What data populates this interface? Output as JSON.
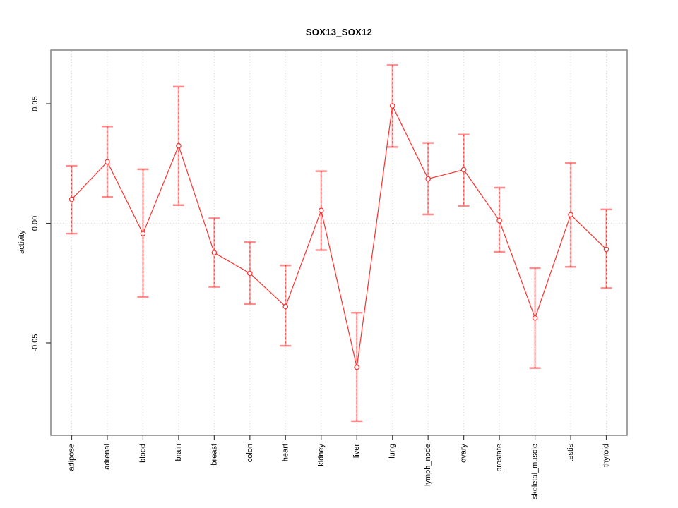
{
  "chart_data": {
    "type": "line",
    "title": "SOX13_SOX12",
    "xlabel": "",
    "ylabel": "activity",
    "categories": [
      "adipose",
      "adrenal",
      "blood",
      "brain",
      "breast",
      "colon",
      "heart",
      "kidney",
      "liver",
      "lung",
      "lymph_node",
      "ovary",
      "prostate",
      "skeletal_muscle",
      "testis",
      "thyroid"
    ],
    "series": [
      {
        "name": "SOX13_SOX12 activity",
        "values": [
          0.01,
          0.0257,
          -0.0043,
          0.0324,
          -0.0123,
          -0.0209,
          -0.0348,
          0.0054,
          -0.0602,
          0.0491,
          0.0186,
          0.0224,
          0.0011,
          -0.0396,
          0.0036,
          -0.0109
        ],
        "upper": [
          0.024,
          0.0405,
          0.0226,
          0.0571,
          0.0021,
          -0.0079,
          -0.0176,
          0.0218,
          -0.0374,
          0.0661,
          0.0336,
          0.0371,
          0.0149,
          -0.0187,
          0.0252,
          0.0058
        ],
        "lower": [
          -0.0043,
          0.011,
          -0.0308,
          0.0076,
          -0.0266,
          -0.0337,
          -0.0512,
          -0.0112,
          -0.0827,
          0.0319,
          0.0037,
          0.0073,
          -0.012,
          -0.0605,
          -0.0182,
          -0.0271
        ]
      }
    ],
    "yticks": {
      "values": [
        0.05,
        0.0,
        -0.05
      ],
      "labels": [
        "0.05",
        "0.00",
        "-0.05"
      ]
    },
    "ylim": [
      -0.0886,
      0.0724
    ],
    "grid": {
      "vertical_dotted_per_category": true,
      "horizontal_zero_line_dotted": true
    },
    "legend": "none",
    "marker": "open-circle",
    "error_bars": true
  },
  "colors": {
    "series_line": "#ff3030",
    "error_bar_band": "rgba(255,48,48,0.35)",
    "error_bar_cap": "rgba(255,48,48,0.55)",
    "error_bar_dash": "#ff3030",
    "grid": "#d9d9d9",
    "box": "#828282",
    "tick": "#3c3c3c",
    "text": "#000000",
    "background": "#ffffff"
  }
}
